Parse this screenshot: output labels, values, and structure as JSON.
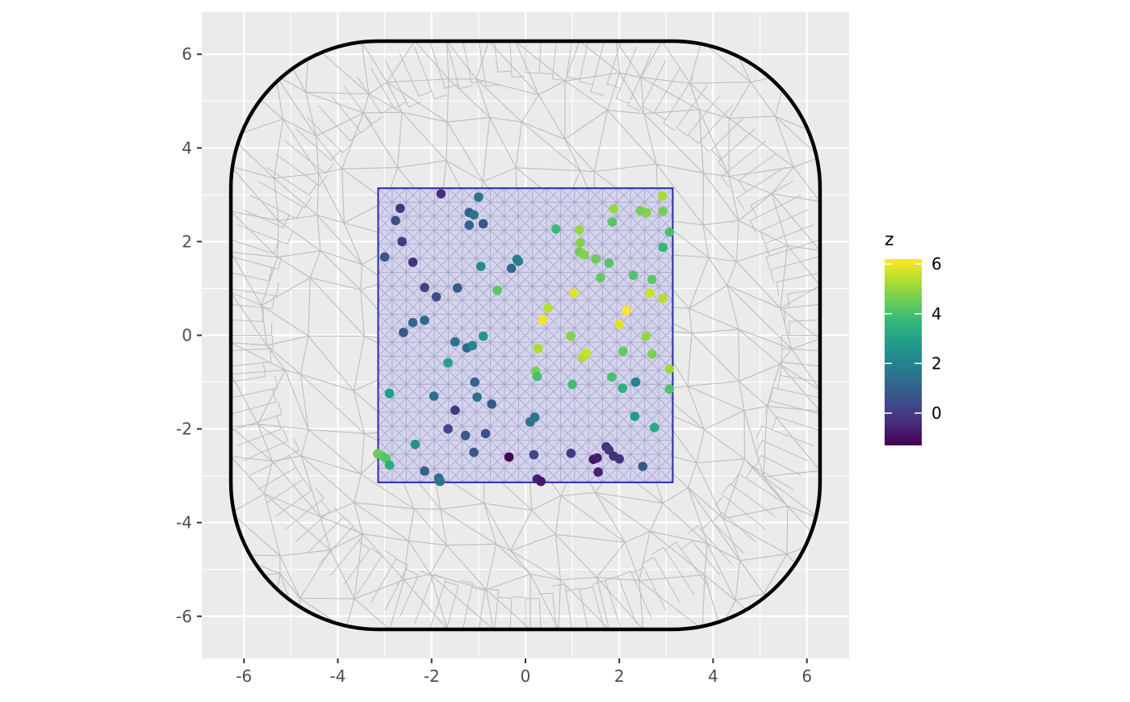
{
  "chart_data": {
    "type": "scatter",
    "title": "",
    "xlabel": "",
    "ylabel": "",
    "xlim": [
      -6.9,
      6.9
    ],
    "ylim": [
      -6.9,
      6.9
    ],
    "x_ticks": [
      -6,
      -4,
      -2,
      0,
      2,
      4,
      6
    ],
    "y_ticks": [
      -6,
      -4,
      -2,
      0,
      2,
      4,
      6
    ],
    "x_tick_labels": [
      "-6",
      "-4",
      "-2",
      "0",
      "2",
      "4",
      "6"
    ],
    "y_tick_labels": [
      "-6",
      "-4",
      "-2",
      "0",
      "2",
      "4",
      "6"
    ],
    "grid": true,
    "panel_background": "#ebebeb",
    "boundary": {
      "type": "rounded-square",
      "xlim": [
        -6.28,
        6.28
      ],
      "ylim": [
        -6.28,
        6.28
      ],
      "corner_radius": 3.14,
      "color": "#000000"
    },
    "mesh_color": "#bdbdbd",
    "inner_region": {
      "xlim": [
        -3.14,
        3.14
      ],
      "ylim": [
        -3.14,
        3.14
      ],
      "grid_step": 0.3,
      "fill": "#d3d3ee",
      "stroke": "#2a2aa8"
    },
    "legend": {
      "title": "z",
      "position": "right",
      "range": [
        -1.3,
        6.2
      ],
      "ticks": [
        6,
        4,
        2,
        0
      ],
      "tick_labels": [
        "6",
        "4",
        "2",
        "0"
      ],
      "colormap": "viridis"
    },
    "points": [
      {
        "x": -1.8,
        "y": 3.02,
        "z": -0.3
      },
      {
        "x": -1.0,
        "y": 2.95,
        "z": 1.5
      },
      {
        "x": -2.67,
        "y": 2.71,
        "z": -0.1
      },
      {
        "x": -1.2,
        "y": 2.62,
        "z": 1.0
      },
      {
        "x": -1.1,
        "y": 2.57,
        "z": 1.6
      },
      {
        "x": -2.77,
        "y": 2.45,
        "z": 0.5
      },
      {
        "x": -0.9,
        "y": 2.38,
        "z": 0.7
      },
      {
        "x": -1.2,
        "y": 2.35,
        "z": 1.0
      },
      {
        "x": -2.63,
        "y": 2.0,
        "z": 0.0
      },
      {
        "x": -2.4,
        "y": 1.56,
        "z": -0.2
      },
      {
        "x": -3.0,
        "y": 1.67,
        "z": 0.7
      },
      {
        "x": -0.95,
        "y": 1.47,
        "z": 2.3
      },
      {
        "x": -0.3,
        "y": 1.43,
        "z": 1.2
      },
      {
        "x": -0.15,
        "y": 1.58,
        "z": 1.7
      },
      {
        "x": -0.18,
        "y": 1.62,
        "z": 1.9
      },
      {
        "x": -2.15,
        "y": 1.02,
        "z": 0.2
      },
      {
        "x": -1.45,
        "y": 1.01,
        "z": 0.8
      },
      {
        "x": -1.9,
        "y": 0.82,
        "z": 0.5
      },
      {
        "x": -0.6,
        "y": 0.96,
        "z": 4.3
      },
      {
        "x": -2.4,
        "y": 0.27,
        "z": 1.3
      },
      {
        "x": -2.15,
        "y": 0.32,
        "z": 1.2
      },
      {
        "x": -2.6,
        "y": 0.06,
        "z": 0.8
      },
      {
        "x": -1.5,
        "y": -0.14,
        "z": 1.5
      },
      {
        "x": -1.25,
        "y": -0.27,
        "z": 1.2
      },
      {
        "x": -1.13,
        "y": -0.22,
        "z": 2.1
      },
      {
        "x": -0.9,
        "y": -0.02,
        "z": 2.7
      },
      {
        "x": -1.65,
        "y": -0.59,
        "z": 3.0
      },
      {
        "x": -1.08,
        "y": -1.0,
        "z": 1.1
      },
      {
        "x": -2.9,
        "y": -1.24,
        "z": 2.9
      },
      {
        "x": -1.95,
        "y": -1.3,
        "z": 1.4
      },
      {
        "x": -1.03,
        "y": -1.32,
        "z": 1.5
      },
      {
        "x": -0.72,
        "y": -1.47,
        "z": 0.8
      },
      {
        "x": -1.5,
        "y": -1.6,
        "z": -0.1
      },
      {
        "x": -1.65,
        "y": -2.0,
        "z": 0.3
      },
      {
        "x": -1.28,
        "y": -2.14,
        "z": 0.8
      },
      {
        "x": -0.85,
        "y": -2.1,
        "z": 0.6
      },
      {
        "x": 0.1,
        "y": -1.85,
        "z": 1.5
      },
      {
        "x": 0.2,
        "y": -1.75,
        "z": 1.7
      },
      {
        "x": -2.35,
        "y": -2.33,
        "z": 2.5
      },
      {
        "x": -1.1,
        "y": -2.5,
        "z": 0.7
      },
      {
        "x": -3.15,
        "y": -2.53,
        "z": 4.5
      },
      {
        "x": -3.05,
        "y": -2.58,
        "z": 4.4
      },
      {
        "x": -2.97,
        "y": -2.63,
        "z": 4.2
      },
      {
        "x": -2.9,
        "y": -2.77,
        "z": 3.3
      },
      {
        "x": -2.15,
        "y": -2.9,
        "z": 1.0
      },
      {
        "x": -1.85,
        "y": -3.05,
        "z": 1.3
      },
      {
        "x": -1.82,
        "y": -3.12,
        "z": 1.6
      },
      {
        "x": -0.35,
        "y": -2.6,
        "z": -1.3
      },
      {
        "x": 0.18,
        "y": -2.55,
        "z": 0.3
      },
      {
        "x": 0.25,
        "y": -3.07,
        "z": -0.6
      },
      {
        "x": 0.33,
        "y": -3.12,
        "z": -0.8
      },
      {
        "x": 0.97,
        "y": -2.52,
        "z": 0.0
      },
      {
        "x": 1.45,
        "y": -2.65,
        "z": -0.9
      },
      {
        "x": 1.53,
        "y": -2.62,
        "z": -0.7
      },
      {
        "x": 1.55,
        "y": -2.92,
        "z": -0.6
      },
      {
        "x": 1.72,
        "y": -2.38,
        "z": -0.2
      },
      {
        "x": 1.78,
        "y": -2.45,
        "z": -0.1
      },
      {
        "x": 1.88,
        "y": -2.58,
        "z": -0.3
      },
      {
        "x": 2.0,
        "y": -2.64,
        "z": -0.2
      },
      {
        "x": 2.5,
        "y": -2.8,
        "z": 0.8
      },
      {
        "x": 2.33,
        "y": -1.73,
        "z": 2.8
      },
      {
        "x": 2.75,
        "y": -1.97,
        "z": 3.3
      },
      {
        "x": 2.35,
        "y": -1.0,
        "z": 2.0
      },
      {
        "x": 2.07,
        "y": -1.13,
        "z": 3.5
      },
      {
        "x": 1.84,
        "y": -0.89,
        "z": 4.0
      },
      {
        "x": 1.0,
        "y": -1.05,
        "z": 3.9
      },
      {
        "x": 0.22,
        "y": -0.77,
        "z": 4.6
      },
      {
        "x": 0.25,
        "y": -0.88,
        "z": 4.0
      },
      {
        "x": 0.27,
        "y": -0.28,
        "z": 5.3
      },
      {
        "x": 0.97,
        "y": -0.02,
        "z": 4.8
      },
      {
        "x": 1.22,
        "y": -0.47,
        "z": 5.3
      },
      {
        "x": 1.3,
        "y": -0.38,
        "z": 5.6
      },
      {
        "x": 2.08,
        "y": -0.34,
        "z": 4.4
      },
      {
        "x": 2.7,
        "y": -0.4,
        "z": 4.7
      },
      {
        "x": 3.07,
        "y": -0.72,
        "z": 5.1
      },
      {
        "x": 3.07,
        "y": -1.15,
        "z": 4.1
      },
      {
        "x": 2.57,
        "y": -0.02,
        "z": 5.0
      },
      {
        "x": 0.37,
        "y": 0.33,
        "z": 6.1
      },
      {
        "x": 0.48,
        "y": 0.58,
        "z": 5.4
      },
      {
        "x": 1.03,
        "y": 0.9,
        "z": 5.9
      },
      {
        "x": 2.0,
        "y": 0.23,
        "z": 5.9
      },
      {
        "x": 2.15,
        "y": 0.53,
        "z": 6.2
      },
      {
        "x": 2.65,
        "y": 0.9,
        "z": 5.6
      },
      {
        "x": 2.93,
        "y": 0.79,
        "z": 5.4
      },
      {
        "x": 1.6,
        "y": 1.23,
        "z": 4.4
      },
      {
        "x": 2.3,
        "y": 1.28,
        "z": 4.1
      },
      {
        "x": 2.7,
        "y": 1.19,
        "z": 4.3
      },
      {
        "x": 0.65,
        "y": 2.27,
        "z": 3.8
      },
      {
        "x": 1.15,
        "y": 2.25,
        "z": 5.0
      },
      {
        "x": 1.17,
        "y": 1.98,
        "z": 4.8
      },
      {
        "x": 1.15,
        "y": 1.78,
        "z": 4.6
      },
      {
        "x": 1.25,
        "y": 1.72,
        "z": 4.8
      },
      {
        "x": 1.5,
        "y": 1.63,
        "z": 4.5
      },
      {
        "x": 1.78,
        "y": 1.54,
        "z": 4.2
      },
      {
        "x": 1.85,
        "y": 2.42,
        "z": 4.2
      },
      {
        "x": 1.88,
        "y": 2.7,
        "z": 5.0
      },
      {
        "x": 2.45,
        "y": 2.66,
        "z": 4.6
      },
      {
        "x": 2.58,
        "y": 2.62,
        "z": 4.8
      },
      {
        "x": 2.93,
        "y": 2.65,
        "z": 4.6
      },
      {
        "x": 2.92,
        "y": 2.97,
        "z": 5.2
      },
      {
        "x": 2.93,
        "y": 1.88,
        "z": 3.7
      },
      {
        "x": 3.07,
        "y": 2.2,
        "z": 4.0
      }
    ]
  }
}
